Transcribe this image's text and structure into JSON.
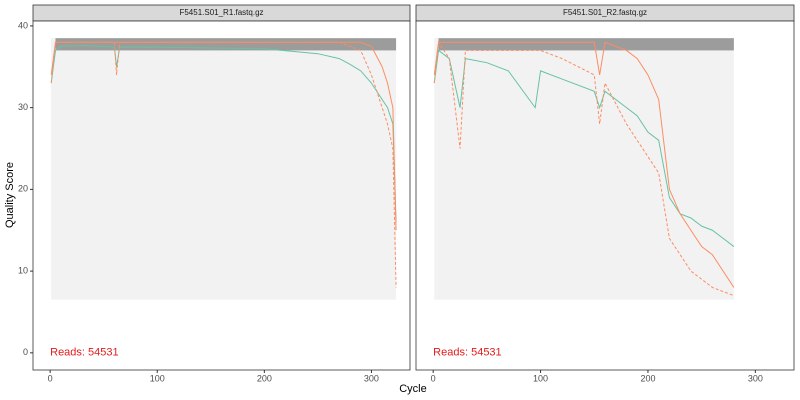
{
  "chart_data": [
    {
      "type": "line",
      "title": "F5451.S01_R1.fastq.gz",
      "x_label": "Cycle",
      "y_label": "Quality Score",
      "annotation": "Reads:  54531",
      "annotation_color": "#e41a1c",
      "xlim": [
        -16,
        336
      ],
      "ylim": [
        -2.1,
        40.6
      ],
      "xticks": [
        0,
        100,
        200,
        300
      ],
      "yticks": [
        0,
        10,
        20,
        30,
        40
      ],
      "x": [
        1,
        5,
        10,
        30,
        60,
        62,
        65,
        100,
        150,
        200,
        250,
        270,
        280,
        290,
        300,
        310,
        315,
        320,
        323
      ],
      "series": [
        {
          "color": "#66c2a5",
          "dash": false,
          "values": [
            33,
            37,
            37.5,
            37.6,
            37.4,
            35,
            37.4,
            37.4,
            37.3,
            37.2,
            36.6,
            36,
            35.3,
            34.5,
            33,
            31,
            30,
            28,
            16
          ]
        },
        {
          "color": "#fc8d62",
          "dash": false,
          "values": [
            34,
            38,
            38,
            38,
            38,
            38,
            38,
            38,
            38,
            38,
            38,
            38,
            38,
            38,
            37.5,
            35,
            33,
            30,
            15
          ]
        },
        {
          "color": "#fc8d62",
          "dash": true,
          "values": [
            33,
            38,
            38,
            38,
            38,
            34,
            38,
            38,
            38,
            38,
            38,
            38,
            37.5,
            37,
            34,
            30,
            28,
            25,
            8
          ]
        }
      ]
    },
    {
      "type": "line",
      "title": "F5451.S01_R2.fastq.gz",
      "annotation": "Reads:  54531",
      "annotation_color": "#e41a1c",
      "xlim": [
        -16,
        336
      ],
      "ylim": [
        -2.1,
        40.6
      ],
      "xticks": [
        0,
        100,
        200,
        300
      ],
      "x": [
        1,
        5,
        15,
        25,
        30,
        50,
        70,
        95,
        100,
        120,
        150,
        155,
        160,
        180,
        190,
        200,
        210,
        220,
        230,
        240,
        250,
        260,
        270,
        280
      ],
      "series": [
        {
          "color": "#66c2a5",
          "dash": false,
          "values": [
            33,
            37,
            36,
            30,
            36,
            35.5,
            34.5,
            30,
            34.5,
            33.5,
            32,
            30,
            32,
            30,
            29,
            27,
            26,
            19,
            17,
            16.5,
            15.5,
            15,
            14,
            13
          ]
        },
        {
          "color": "#fc8d62",
          "dash": false,
          "values": [
            34,
            38,
            38,
            38,
            38,
            38,
            38,
            38,
            38,
            38,
            38,
            34,
            38,
            37,
            36,
            34,
            31,
            20,
            17,
            15,
            13,
            12,
            10,
            8
          ]
        },
        {
          "color": "#fc8d62",
          "dash": true,
          "values": [
            33,
            38,
            36,
            25,
            37,
            37,
            37,
            37,
            37,
            36,
            34,
            28,
            33,
            28,
            26,
            24,
            22,
            14,
            12,
            10,
            9,
            8,
            7.5,
            7
          ]
        }
      ]
    }
  ]
}
